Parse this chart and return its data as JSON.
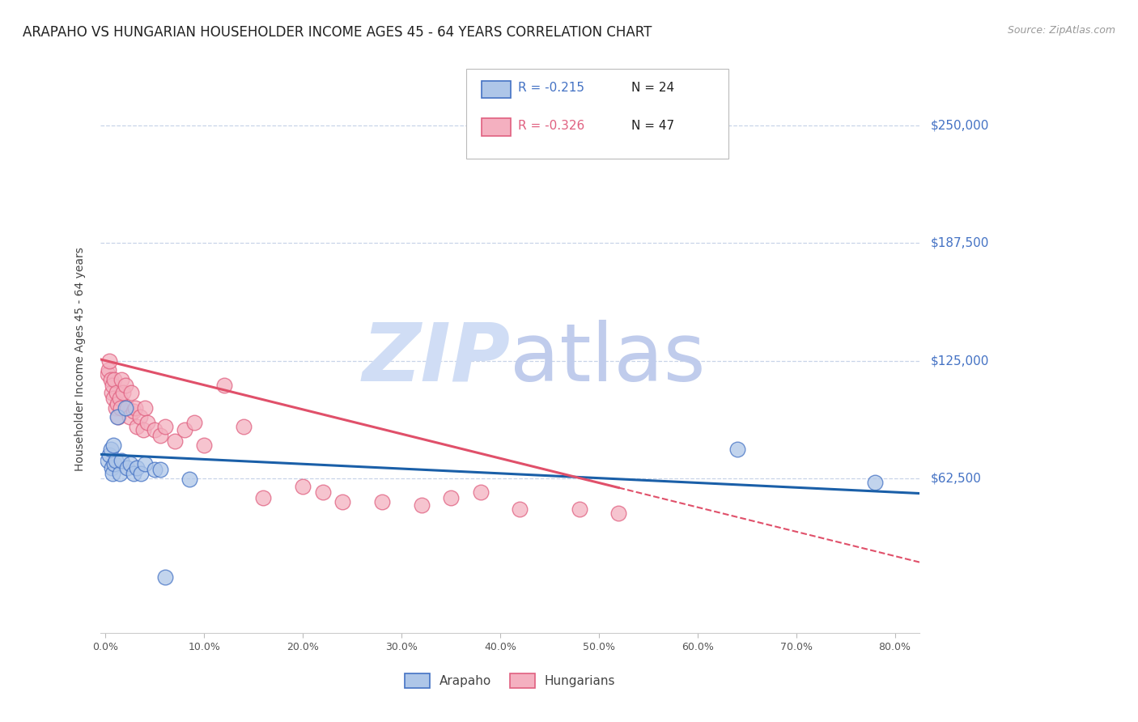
{
  "title": "ARAPAHO VS HUNGARIAN HOUSEHOLDER INCOME AGES 45 - 64 YEARS CORRELATION CHART",
  "source": "Source: ZipAtlas.com",
  "ylabel": "Householder Income Ages 45 - 64 years",
  "xtick_labels": [
    "0.0%",
    "10.0%",
    "20.0%",
    "30.0%",
    "40.0%",
    "50.0%",
    "60.0%",
    "70.0%",
    "80.0%"
  ],
  "xtick_values": [
    0.0,
    0.1,
    0.2,
    0.3,
    0.4,
    0.5,
    0.6,
    0.7,
    0.8
  ],
  "ytick_right_labels": [
    "$62,500",
    "$125,000",
    "$187,500",
    "$250,000"
  ],
  "ytick_right_values": [
    62500,
    125000,
    187500,
    250000
  ],
  "xlim": [
    -0.005,
    0.825
  ],
  "ylim": [
    -20000,
    272000
  ],
  "arapaho_R": -0.215,
  "arapaho_N": 24,
  "hungarian_R": -0.326,
  "hungarian_N": 47,
  "arapaho_scatter_color": "#aec6e8",
  "arapaho_edge_color": "#4472C4",
  "hungarian_scatter_color": "#f4b0c0",
  "hungarian_edge_color": "#e06080",
  "arapaho_line_color": "#1a5fa8",
  "hungarian_line_color": "#e0506a",
  "watermark_color": "#ccd9f0",
  "background_color": "#ffffff",
  "grid_color": "#c8d4e8",
  "right_tick_color": "#4472C4",
  "arapaho_x": [
    0.002,
    0.004,
    0.005,
    0.006,
    0.007,
    0.008,
    0.009,
    0.01,
    0.012,
    0.014,
    0.016,
    0.02,
    0.022,
    0.025,
    0.028,
    0.032,
    0.036,
    0.04,
    0.05,
    0.055,
    0.06,
    0.085,
    0.64,
    0.78
  ],
  "arapaho_y": [
    72000,
    75000,
    78000,
    68000,
    65000,
    80000,
    70000,
    72000,
    95000,
    65000,
    72000,
    100000,
    68000,
    70000,
    65000,
    68000,
    65000,
    70000,
    67000,
    67000,
    10000,
    62000,
    78000,
    60000
  ],
  "hungarian_x": [
    0.002,
    0.003,
    0.004,
    0.005,
    0.006,
    0.007,
    0.008,
    0.009,
    0.01,
    0.011,
    0.012,
    0.013,
    0.014,
    0.015,
    0.016,
    0.018,
    0.02,
    0.022,
    0.024,
    0.026,
    0.028,
    0.03,
    0.032,
    0.035,
    0.038,
    0.04,
    0.042,
    0.05,
    0.055,
    0.06,
    0.07,
    0.08,
    0.09,
    0.1,
    0.12,
    0.14,
    0.16,
    0.2,
    0.22,
    0.24,
    0.28,
    0.32,
    0.35,
    0.38,
    0.42,
    0.48,
    0.52
  ],
  "hungarian_y": [
    118000,
    120000,
    125000,
    115000,
    108000,
    112000,
    105000,
    115000,
    100000,
    108000,
    102000,
    95000,
    105000,
    100000,
    115000,
    108000,
    112000,
    100000,
    95000,
    108000,
    98000,
    100000,
    90000,
    95000,
    88000,
    100000,
    92000,
    88000,
    85000,
    90000,
    82000,
    88000,
    92000,
    80000,
    112000,
    90000,
    52000,
    58000,
    55000,
    50000,
    50000,
    48000,
    52000,
    55000,
    46000,
    46000,
    44000
  ],
  "title_fontsize": 12,
  "axis_label_fontsize": 10,
  "tick_fontsize": 9,
  "legend_fontsize": 11,
  "source_fontsize": 9
}
